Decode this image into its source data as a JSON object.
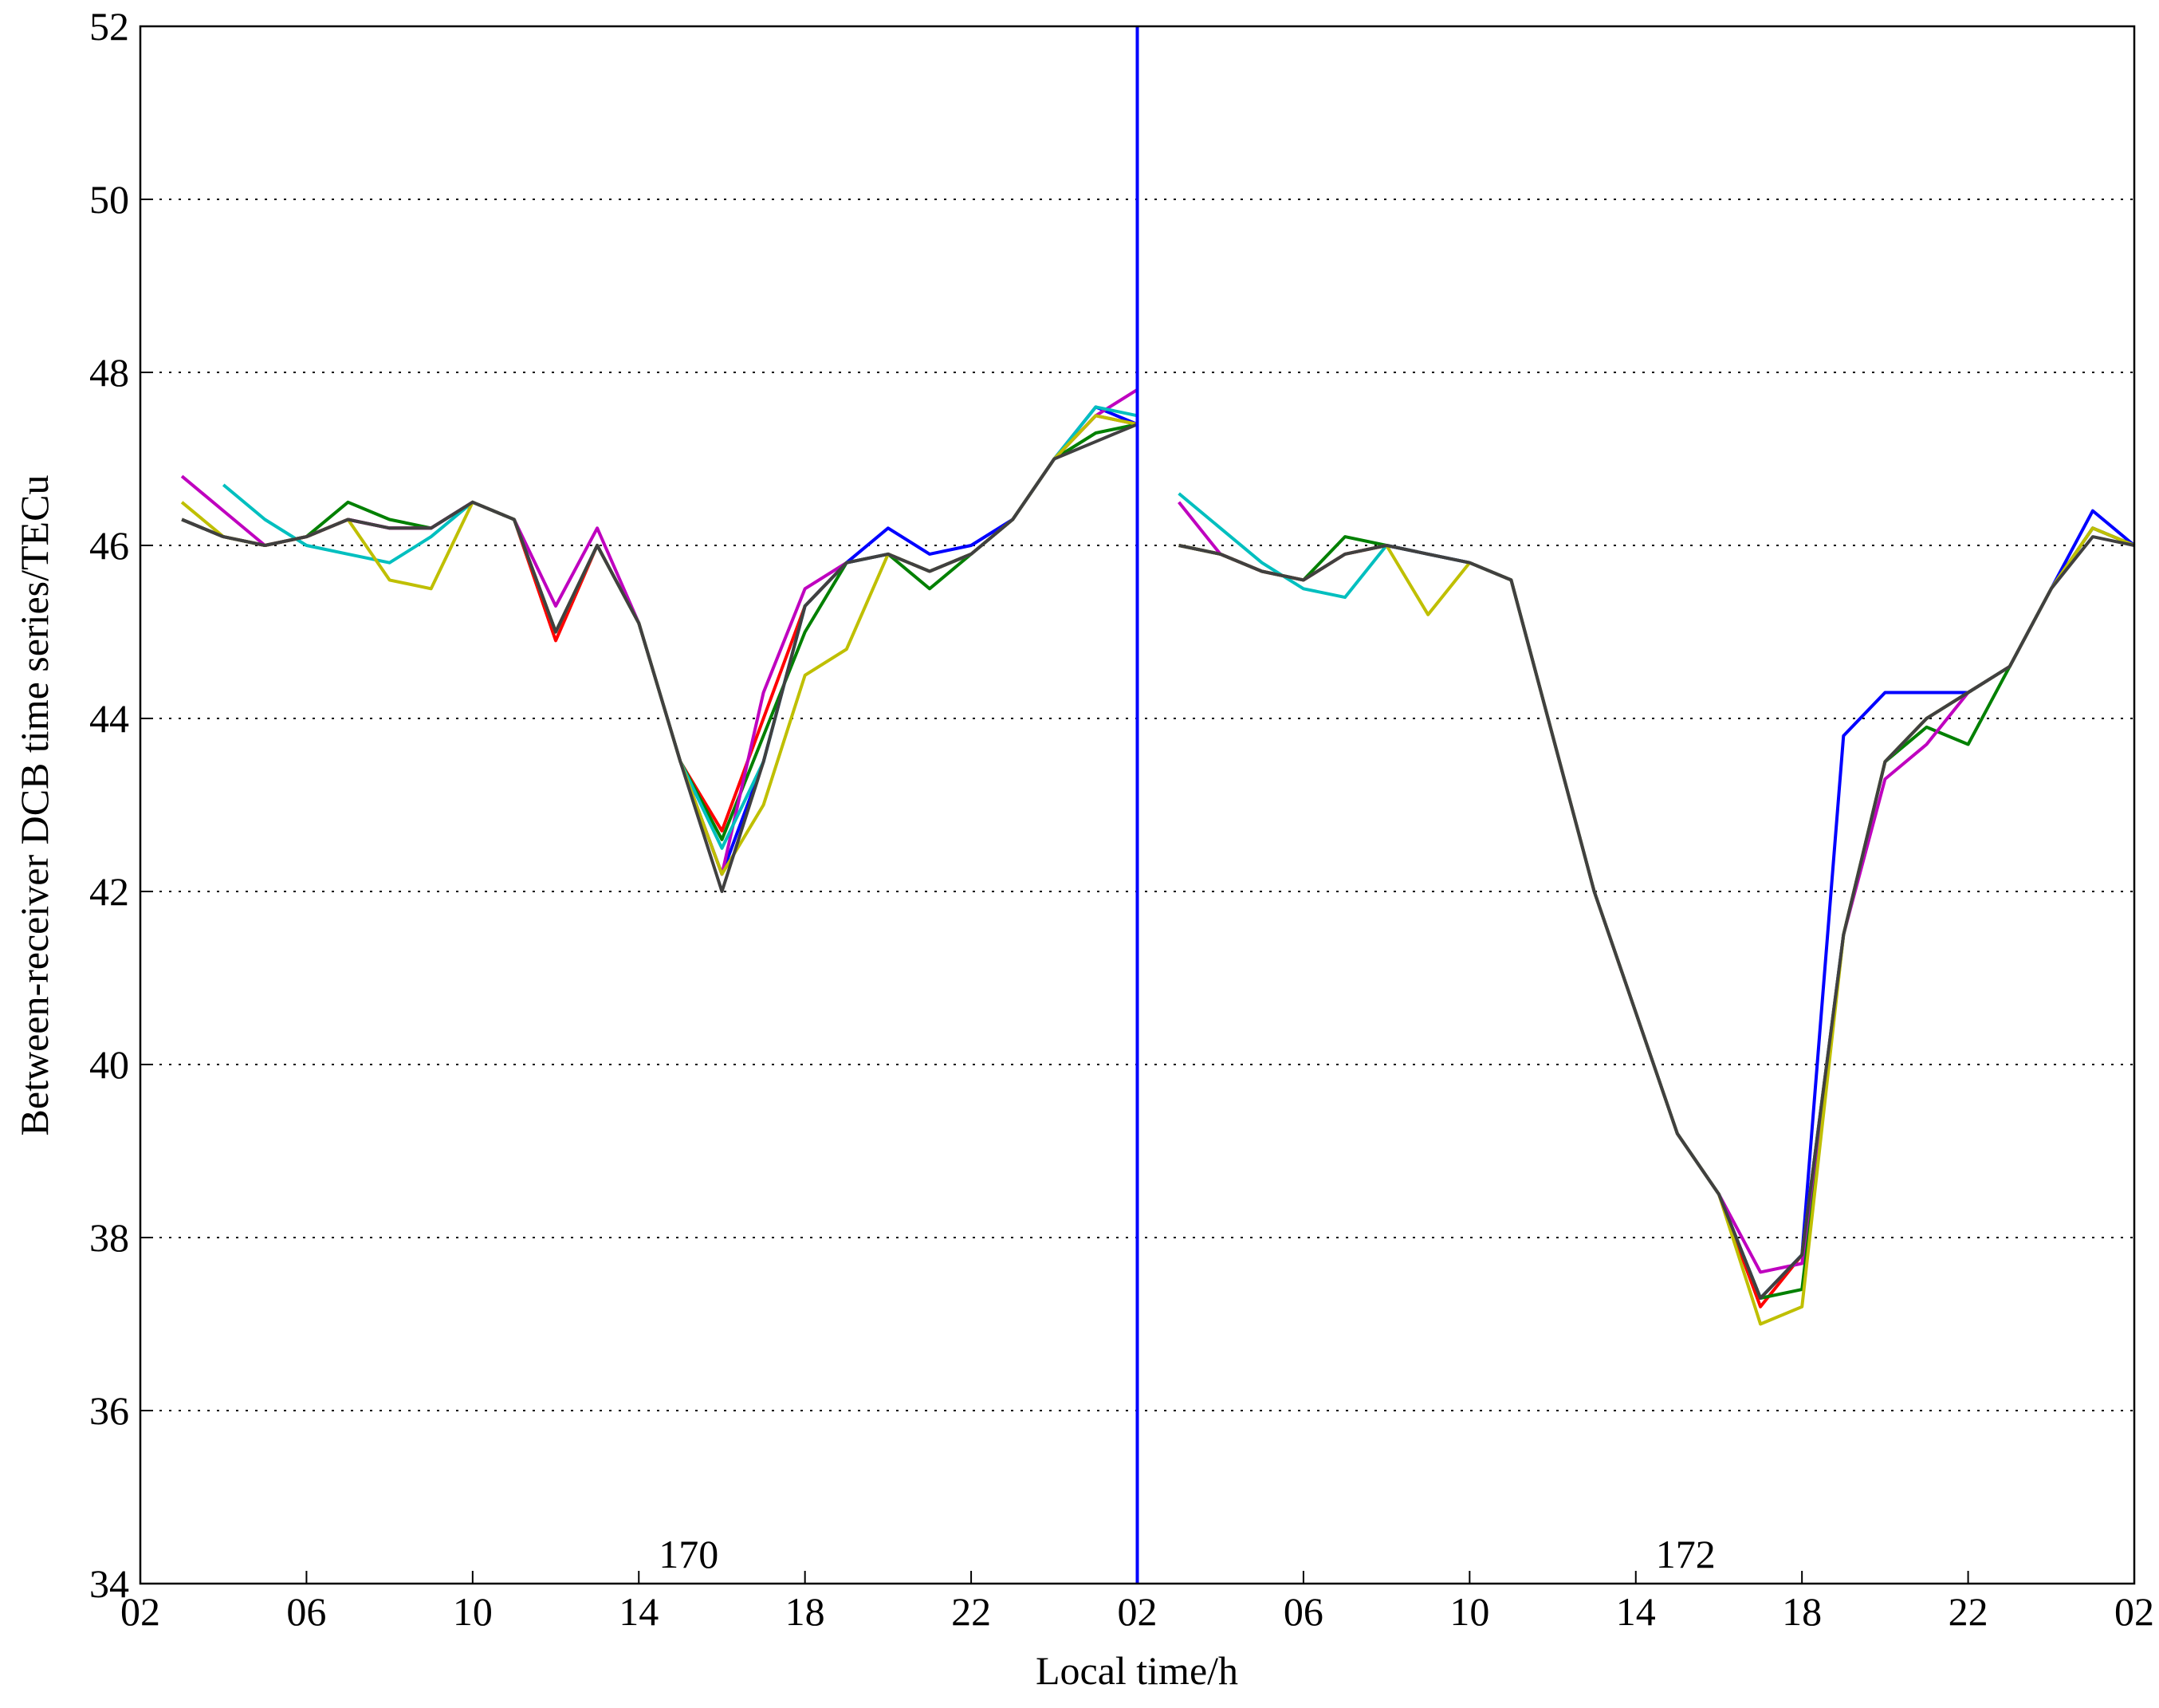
{
  "chart_data": {
    "type": "line",
    "y_label": "Between-receiver DCB time series/TECu",
    "x_label": "Local time/h",
    "annotations": [
      "170",
      "172"
    ],
    "x": [
      3,
      4,
      5,
      6,
      7,
      8,
      9,
      10,
      11,
      12,
      13,
      14,
      15,
      16,
      17,
      18,
      19,
      20,
      21,
      22,
      23,
      24,
      25,
      26,
      26.5,
      27,
      28,
      29,
      30,
      31,
      32,
      33,
      34,
      35,
      36,
      37,
      38,
      39,
      40,
      41,
      42,
      43,
      44,
      45,
      46,
      47,
      48,
      49,
      50
    ],
    "series": [
      {
        "color": "#0000ff",
        "values": [
          46.3,
          46.1,
          46.0,
          46.1,
          46.3,
          46.2,
          46.2,
          46.5,
          46.3,
          45.0,
          46.0,
          45.1,
          43.5,
          42.2,
          43.5,
          45.3,
          45.8,
          46.2,
          45.9,
          46.0,
          46.3,
          47.0,
          47.6,
          47.4,
          null,
          46.0,
          45.9,
          45.7,
          45.6,
          45.9,
          46.0,
          45.9,
          45.8,
          45.6,
          43.8,
          42.0,
          40.6,
          39.2,
          38.5,
          37.3,
          37.8,
          43.8,
          44.3,
          44.3,
          44.3,
          44.6,
          45.5,
          46.4,
          46.0
        ]
      },
      {
        "color": "#ff0000",
        "values": [
          46.3,
          46.1,
          46.0,
          46.1,
          46.3,
          46.2,
          46.2,
          46.5,
          46.3,
          44.9,
          46.0,
          45.1,
          43.5,
          42.7,
          44.0,
          45.3,
          45.8,
          45.9,
          45.7,
          45.9,
          46.3,
          47.0,
          47.5,
          47.4,
          null,
          46.0,
          45.9,
          45.7,
          45.6,
          45.9,
          46.0,
          45.9,
          45.8,
          45.6,
          43.8,
          42.0,
          40.6,
          39.2,
          38.5,
          37.2,
          37.8,
          41.5,
          43.5,
          44.0,
          44.3,
          44.6,
          45.5,
          46.2,
          46.0
        ]
      },
      {
        "color": "#008000",
        "values": [
          46.3,
          46.1,
          46.0,
          46.1,
          46.5,
          46.3,
          46.2,
          46.5,
          46.3,
          45.0,
          46.0,
          45.1,
          43.5,
          42.6,
          43.8,
          45.0,
          45.8,
          45.9,
          45.5,
          45.9,
          46.3,
          47.0,
          47.3,
          47.4,
          null,
          46.0,
          45.9,
          45.7,
          45.6,
          46.1,
          46.0,
          45.9,
          45.8,
          45.6,
          43.8,
          42.0,
          40.6,
          39.2,
          38.5,
          37.3,
          37.4,
          41.5,
          43.5,
          43.9,
          43.7,
          44.6,
          45.5,
          46.2,
          46.0
        ]
      },
      {
        "color": "#bf00bf",
        "values": [
          46.8,
          46.4,
          46.0,
          46.1,
          46.3,
          46.2,
          46.2,
          46.5,
          46.3,
          45.3,
          46.2,
          45.1,
          43.5,
          42.2,
          44.3,
          45.5,
          45.8,
          45.9,
          45.7,
          45.9,
          46.3,
          47.0,
          47.5,
          47.8,
          null,
          46.5,
          45.9,
          45.7,
          45.6,
          45.9,
          46.0,
          45.9,
          45.8,
          45.6,
          43.8,
          42.0,
          40.6,
          39.2,
          38.5,
          37.6,
          37.7,
          41.5,
          43.3,
          43.7,
          44.3,
          44.6,
          45.5,
          46.2,
          46.0
        ]
      },
      {
        "color": "#00bfbf",
        "values": [
          null,
          46.7,
          46.3,
          46.0,
          45.9,
          45.8,
          46.1,
          46.5,
          46.3,
          45.0,
          46.0,
          45.1,
          43.5,
          42.5,
          43.5,
          45.3,
          45.8,
          45.9,
          45.7,
          45.9,
          46.3,
          47.0,
          47.6,
          47.5,
          null,
          46.6,
          46.2,
          45.8,
          45.5,
          45.4,
          46.0,
          45.9,
          45.8,
          45.6,
          43.8,
          42.0,
          40.6,
          39.2,
          38.5,
          37.3,
          37.8,
          41.5,
          43.5,
          44.0,
          44.3,
          44.6,
          45.5,
          46.2,
          46.0
        ]
      },
      {
        "color": "#bfbf00",
        "values": [
          46.5,
          46.1,
          46.0,
          46.1,
          46.3,
          45.6,
          45.5,
          46.5,
          46.3,
          45.0,
          46.0,
          45.1,
          43.5,
          42.2,
          43.0,
          44.5,
          44.8,
          45.9,
          45.7,
          45.9,
          46.3,
          47.0,
          47.5,
          47.4,
          null,
          46.0,
          45.9,
          45.7,
          45.6,
          45.9,
          46.0,
          45.2,
          45.8,
          45.6,
          43.8,
          42.0,
          40.6,
          39.2,
          38.5,
          37.0,
          37.2,
          41.5,
          43.5,
          44.0,
          44.3,
          44.6,
          45.5,
          46.2,
          46.0
        ]
      },
      {
        "color": "#404040",
        "values": [
          46.3,
          46.1,
          46.0,
          46.1,
          46.3,
          46.2,
          46.2,
          46.5,
          46.3,
          45.0,
          46.0,
          45.1,
          43.5,
          42.0,
          43.5,
          45.3,
          45.8,
          45.9,
          45.7,
          45.9,
          46.3,
          47.0,
          47.2,
          47.4,
          null,
          46.0,
          45.9,
          45.7,
          45.6,
          45.9,
          46.0,
          45.9,
          45.8,
          45.6,
          43.8,
          42.0,
          40.6,
          39.2,
          38.5,
          37.3,
          37.8,
          41.5,
          43.5,
          44.0,
          44.3,
          44.6,
          45.5,
          46.1,
          46.0
        ]
      }
    ],
    "vlines": [
      {
        "x": 26,
        "color": "#0000ff"
      }
    ],
    "xlim": [
      2,
      50
    ],
    "xticks": [
      {
        "value": 2,
        "label": "02"
      },
      {
        "value": 6,
        "label": "06"
      },
      10,
      14,
      18,
      22,
      {
        "value": 26,
        "label": "02"
      },
      {
        "value": 30,
        "label": "06"
      },
      {
        "value": 34,
        "label": "10"
      },
      {
        "value": 38,
        "label": "14"
      },
      {
        "value": 42,
        "label": "18"
      },
      {
        "value": 46,
        "label": "22"
      },
      {
        "value": 50,
        "label": "02"
      }
    ],
    "ylim": [
      34,
      52
    ],
    "yticks": [
      34,
      36,
      38,
      40,
      42,
      44,
      46,
      48,
      50,
      52
    ],
    "grid": true
  }
}
